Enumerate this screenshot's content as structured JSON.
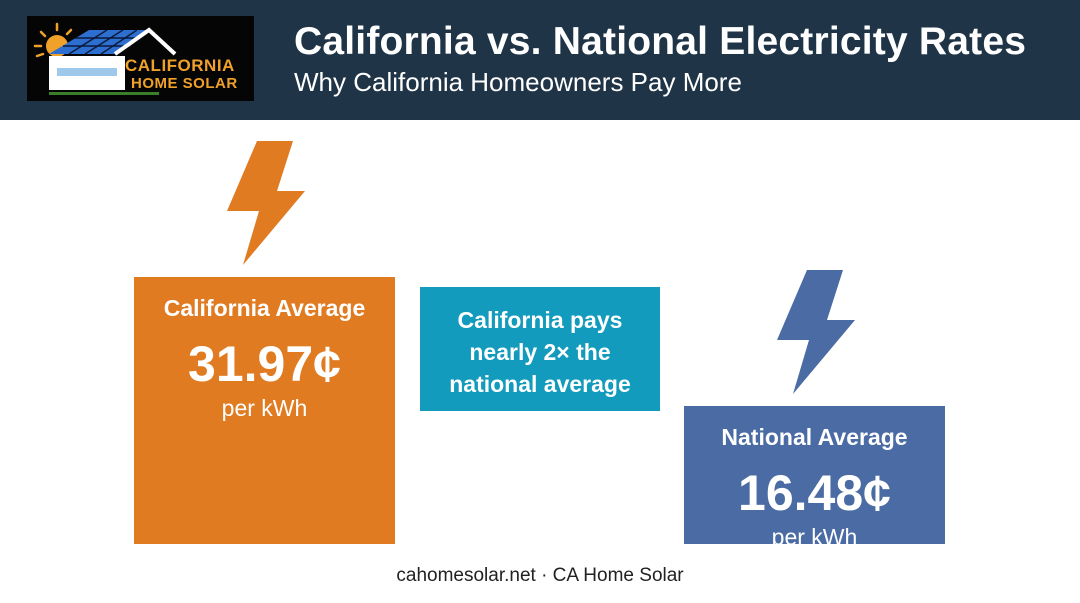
{
  "header": {
    "title": "California vs. National Electricity Rates",
    "subtitle": "Why California Homeowners Pay More",
    "background_color": "#1f3446"
  },
  "logo": {
    "line1": "CALIFORNIA",
    "line2": "HOME SOLAR",
    "text_color": "#f0a12a"
  },
  "chart_data": {
    "type": "bar",
    "title": "California vs. National Electricity Rates",
    "subtitle": "Why California Homeowners Pay More",
    "categories": [
      "California Average",
      "National Average"
    ],
    "values": [
      31.97,
      16.48
    ],
    "value_labels": [
      "31.97¢",
      "16.48¢"
    ],
    "unit_label": "per kWh",
    "colors": [
      "#e07b22",
      "#4a6ba3"
    ],
    "icons": [
      "lightning-bolt-icon",
      "lightning-bolt-icon"
    ],
    "annotation": {
      "lines": [
        "California pays",
        "nearly 2× the",
        "national average"
      ],
      "color": "#139bbd"
    },
    "ylim": [
      0,
      31.97
    ]
  },
  "footer": {
    "text": "cahomesolar.net · CA Home Solar"
  }
}
